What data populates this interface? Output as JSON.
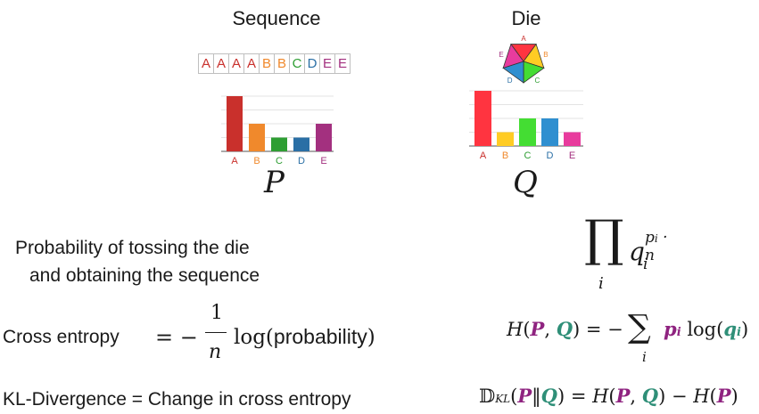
{
  "left": {
    "title": "Sequence",
    "sequence": [
      "A",
      "A",
      "A",
      "A",
      "B",
      "B",
      "C",
      "D",
      "E",
      "E"
    ],
    "letter": "P"
  },
  "right": {
    "title": "Die",
    "letter": "Q"
  },
  "colors": {
    "A": "#c9302c",
    "B": "#f0892c",
    "C": "#2e9e33",
    "D": "#2a6fa5",
    "E": "#a3307f"
  },
  "die_colors": {
    "A": "#ff3440",
    "B": "#ffcc24",
    "C": "#44dd33",
    "D": "#2f8fd0",
    "E": "#e83b9d"
  },
  "chart_data": [
    {
      "type": "bar",
      "categories": [
        "A",
        "B",
        "C",
        "D",
        "E"
      ],
      "values": [
        0.4,
        0.2,
        0.1,
        0.1,
        0.2
      ],
      "ylim": [
        0,
        0.4
      ],
      "grid": true,
      "xlabel": "P"
    },
    {
      "type": "bar",
      "categories": [
        "A",
        "B",
        "C",
        "D",
        "E"
      ],
      "values": [
        0.4,
        0.1,
        0.2,
        0.2,
        0.1
      ],
      "ylim": [
        0,
        0.4
      ],
      "grid": true,
      "xlabel": "Q"
    }
  ],
  "texts": {
    "probability_line1": "Probability of tossing the die",
    "probability_line2": "and obtaining the sequence",
    "cross_entropy_label": "Cross entropy",
    "kl_label": "KL-Divergence = Change in cross entropy",
    "probability_word": "probability"
  }
}
